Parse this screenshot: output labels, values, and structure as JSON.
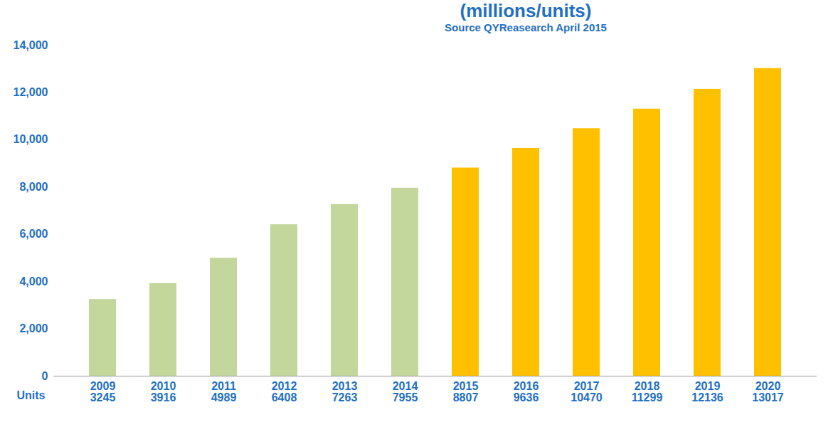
{
  "chart_data": {
    "type": "bar",
    "title": "(millions/units)",
    "subtitle": "Source QYReasearch April 2015",
    "value_row_label": "Units",
    "categories": [
      "2009",
      "2010",
      "2011",
      "2012",
      "2013",
      "2014",
      "2015",
      "2016",
      "2017",
      "2018",
      "2019",
      "2020"
    ],
    "values": [
      3245,
      3916,
      4989,
      6408,
      7263,
      7955,
      8807,
      9636,
      10470,
      11299,
      12136,
      13017
    ],
    "colors": [
      "#c3d69b",
      "#c3d69b",
      "#c3d69b",
      "#c3d69b",
      "#c3d69b",
      "#c3d69b",
      "#ffc000",
      "#ffc000",
      "#ffc000",
      "#ffc000",
      "#ffc000",
      "#ffc000"
    ],
    "ylim": [
      0,
      14000
    ],
    "yticks": [
      0,
      2000,
      4000,
      6000,
      8000,
      10000,
      12000,
      14000
    ],
    "grid": false,
    "data_labels": true
  }
}
